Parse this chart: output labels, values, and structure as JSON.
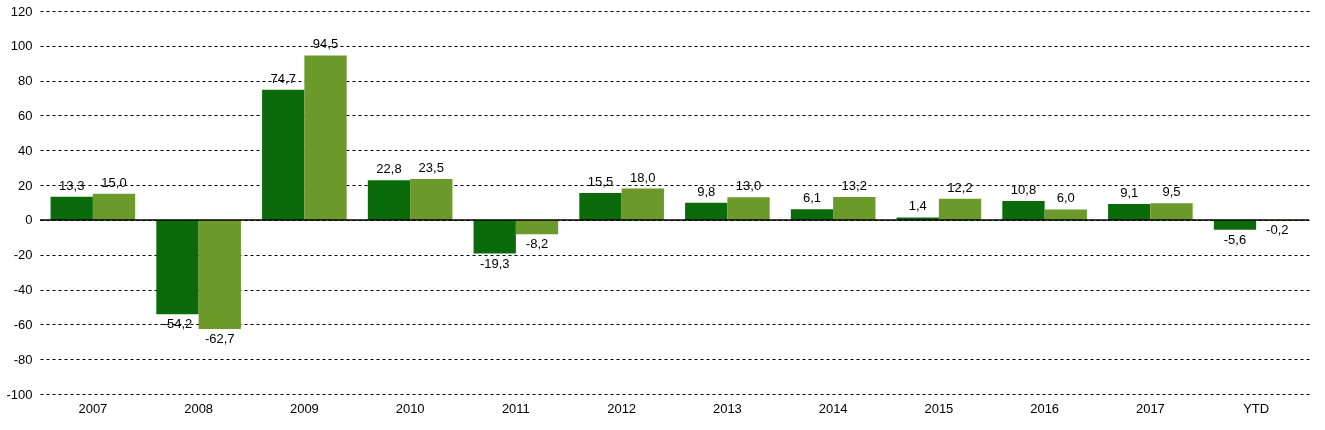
{
  "chart_data": {
    "type": "bar",
    "categories": [
      "2007",
      "2008",
      "2009",
      "2010",
      "2011",
      "2012",
      "2013",
      "2014",
      "2015",
      "2016",
      "2017",
      "YTD"
    ],
    "series": [
      {
        "color": "#0b6b0b",
        "values": [
          13.3,
          -54.2,
          74.7,
          22.8,
          -19.3,
          15.5,
          9.8,
          6.1,
          1.4,
          10.8,
          9.1,
          -5.6
        ],
        "value_labels": [
          "13,3",
          "-54,2",
          "74,7",
          "22,8",
          "-19,3",
          "15,5",
          "9,8",
          "6,1",
          "1,4",
          "10,8",
          "9,1",
          "-5,6"
        ]
      },
      {
        "color": "#6b9a2a",
        "values": [
          15.0,
          -62.7,
          94.5,
          23.5,
          -8.2,
          18.0,
          13.0,
          13.2,
          12.2,
          6.0,
          9.5,
          -0.2
        ],
        "value_labels": [
          "15,0",
          "-62,7",
          "94,5",
          "23,5",
          "-8,2",
          "18,0",
          "13,0",
          "13,2",
          "12,2",
          "6,0",
          "9,5",
          "-0,2"
        ]
      }
    ],
    "ylim": [
      -100,
      120
    ],
    "yticks": [
      -100,
      -80,
      -60,
      -40,
      -20,
      0,
      20,
      40,
      60,
      80,
      100,
      120
    ],
    "grid": "y",
    "legend": false,
    "ref_lines": [
      {
        "axis": "y",
        "value": 0,
        "color": "#000000"
      }
    ]
  }
}
